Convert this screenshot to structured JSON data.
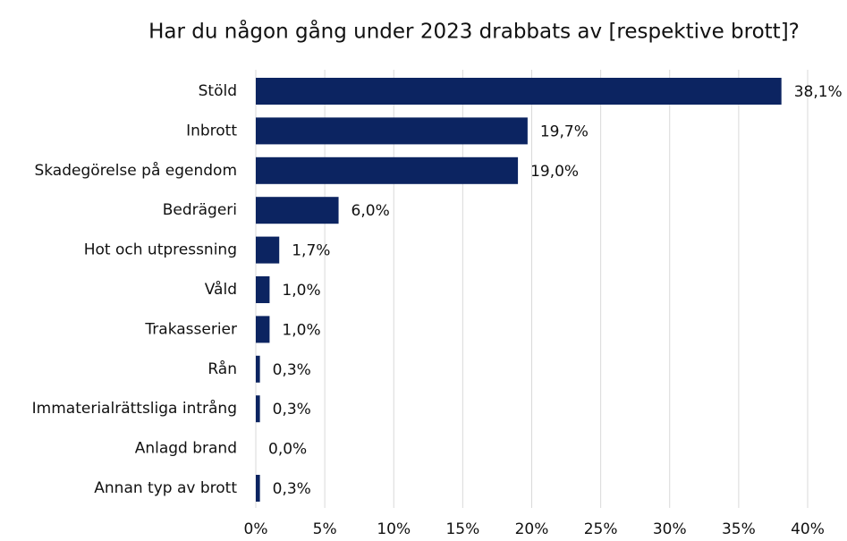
{
  "chart_data": {
    "type": "hbar",
    "title": "Har du någon gång under 2023 drabbats av [respektive brott]?",
    "categories": [
      "Stöld",
      "Inbrott",
      "Skadegörelse på egendom",
      "Bedrägeri",
      "Hot och utpressning",
      "Våld",
      "Trakasserier",
      "Rån",
      "Immaterialrättsliga intrång",
      "Anlagd brand",
      "Annan typ av brott"
    ],
    "values": [
      38.1,
      19.7,
      19.0,
      6.0,
      1.7,
      1.0,
      1.0,
      0.3,
      0.3,
      0.0,
      0.3
    ],
    "value_labels": [
      "38,1%",
      "19,7%",
      "19,0%",
      "6,0%",
      "1,7%",
      "1,0%",
      "1,0%",
      "0,3%",
      "0,3%",
      "0,0%",
      "0,3%"
    ],
    "color": "#0c2461",
    "xlim": [
      0,
      40
    ],
    "xticks": [
      {
        "value": 0,
        "label": "0%"
      },
      {
        "value": 5,
        "label": "5%"
      },
      {
        "value": 10,
        "label": "10%"
      },
      {
        "value": 15,
        "label": "15%"
      },
      {
        "value": 20,
        "label": "20%"
      },
      {
        "value": 25,
        "label": "25%"
      },
      {
        "value": 30,
        "label": "30%"
      },
      {
        "value": 35,
        "label": "35%"
      },
      {
        "value": 40,
        "label": "40%"
      }
    ],
    "grid": true
  }
}
